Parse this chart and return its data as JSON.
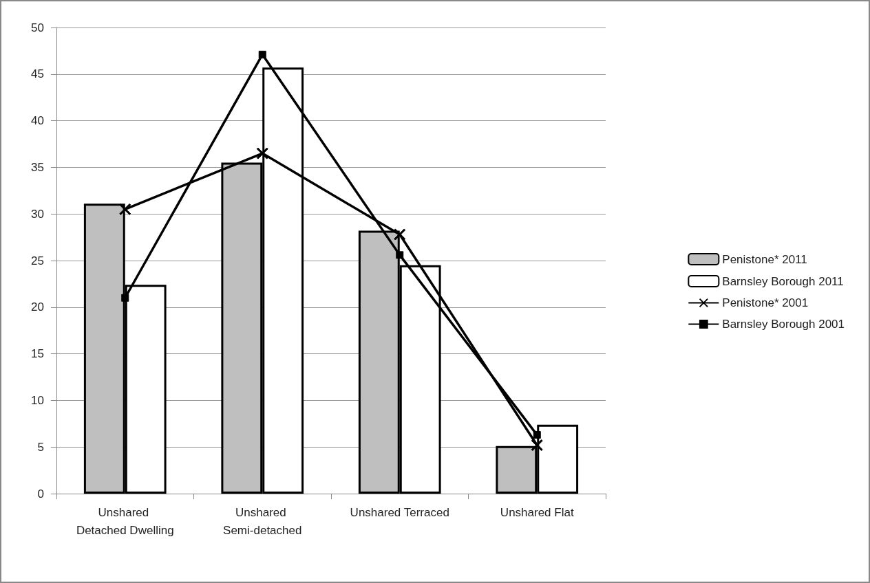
{
  "chart_data": {
    "type": "bar",
    "categories": [
      "Unshared Detached Dwelling",
      "Unshared Semi-detached",
      "Unshared Terraced",
      "Unshared Flat"
    ],
    "series": [
      {
        "name": "Penistone* 2011",
        "color": "#bfbfbf",
        "values": [
          31.1,
          35.5,
          28.2,
          5.1
        ]
      },
      {
        "name": "Barnsley Borough 2011",
        "color": "#ffffff",
        "values": [
          22.4,
          45.7,
          24.5,
          7.4
        ]
      },
      {
        "name": "Penistone* 2001",
        "type": "line",
        "marker": "cross",
        "color": "#000000",
        "values": [
          30.5,
          36.5,
          27.8,
          5.2
        ]
      },
      {
        "name": "Barnsley Borough 2001",
        "type": "line",
        "marker": "square",
        "color": "#000000",
        "values": [
          21.0,
          47.1,
          25.6,
          6.3
        ]
      }
    ],
    "ylim": [
      0,
      50
    ],
    "yticks": [
      0,
      5,
      10,
      15,
      20,
      25,
      30,
      35,
      40,
      45,
      50
    ],
    "grid": "y",
    "legend": "right",
    "line_style": "solid"
  }
}
